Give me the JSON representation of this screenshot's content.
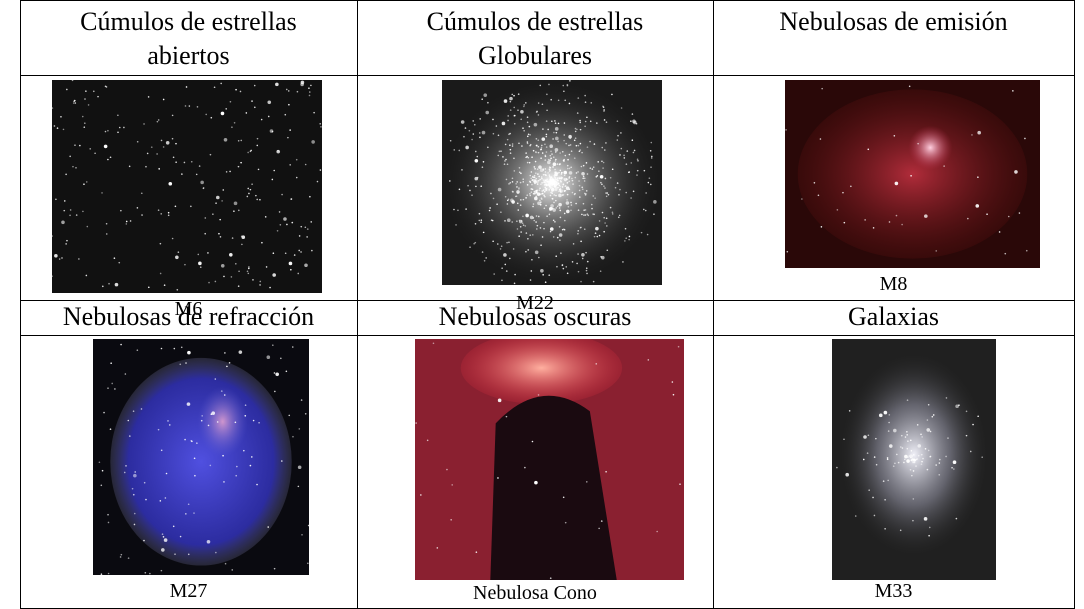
{
  "table": {
    "rows": [
      [
        {
          "title": "Cúmulos de estrellas abiertos",
          "caption": "M6"
        },
        {
          "title": "Cúmulos de estrellas Globulares",
          "caption": "M22"
        },
        {
          "title": "Nebulosas de emisión",
          "caption": "M8"
        }
      ],
      [
        {
          "title": "Nebulosas de refracción",
          "caption": "M27"
        },
        {
          "title": "Nebulosas oscuras",
          "caption": "Nebulosa Cono"
        },
        {
          "title": "Galaxias",
          "caption": "M33"
        }
      ]
    ]
  }
}
